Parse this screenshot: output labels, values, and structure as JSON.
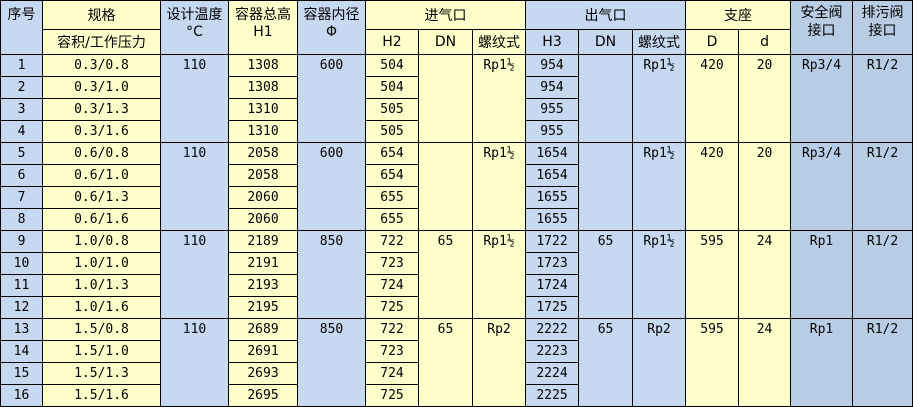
{
  "headers": {
    "no": "序号",
    "spec": "规格",
    "spec_sub": "容积/工作压力",
    "temp": "设计温度",
    "temp_unit": "°C",
    "height": "容器总高",
    "height_sub": "H1",
    "diameter": "容器内径",
    "diameter_sub": "Φ",
    "inlet": "进气口",
    "inlet_h": "H2",
    "inlet_dn": "DN",
    "inlet_thread": "螺纹式",
    "outlet": "出气口",
    "outlet_h": "H3",
    "outlet_dn": "DN",
    "outlet_thread": "螺纹式",
    "support": "支座",
    "support_D": "D",
    "support_d": "d",
    "safety": "安全阀接口",
    "drain": "排污阀接口"
  },
  "colors": {
    "yellow": "#FFFFCC",
    "blue": "#C6D9F1",
    "dark_blue": "#B8CCE4"
  },
  "groups": [
    {
      "temp": "110",
      "diameter": "600",
      "inlet_dn": "",
      "inlet_thread": "Rp1½",
      "outlet_dn": "",
      "outlet_thread": "Rp1½",
      "D": "420",
      "d": "20",
      "safety": "Rp3/4",
      "drain": "R1/2",
      "rows": [
        {
          "no": "1",
          "spec": "0.3/0.8",
          "h1": "1308",
          "h2": "504",
          "h3": "954"
        },
        {
          "no": "2",
          "spec": "0.3/1.0",
          "h1": "1308",
          "h2": "504",
          "h3": "954"
        },
        {
          "no": "3",
          "spec": "0.3/1.3",
          "h1": "1310",
          "h2": "505",
          "h3": "955"
        },
        {
          "no": "4",
          "spec": "0.3/1.6",
          "h1": "1310",
          "h2": "505",
          "h3": "955"
        }
      ]
    },
    {
      "temp": "110",
      "diameter": "600",
      "inlet_dn": "",
      "inlet_thread": "Rp1½",
      "outlet_dn": "",
      "outlet_thread": "Rp1½",
      "D": "420",
      "d": "20",
      "safety": "Rp3/4",
      "drain": "R1/2",
      "rows": [
        {
          "no": "5",
          "spec": "0.6/0.8",
          "h1": "2058",
          "h2": "654",
          "h3": "1654"
        },
        {
          "no": "6",
          "spec": "0.6/1.0",
          "h1": "2058",
          "h2": "654",
          "h3": "1654"
        },
        {
          "no": "7",
          "spec": "0.6/1.3",
          "h1": "2060",
          "h2": "655",
          "h3": "1655"
        },
        {
          "no": "8",
          "spec": "0.6/1.6",
          "h1": "2060",
          "h2": "655",
          "h3": "1655"
        }
      ]
    },
    {
      "temp": "110",
      "diameter": "850",
      "inlet_dn": "65",
      "inlet_thread": "Rp1½",
      "outlet_dn": "65",
      "outlet_thread": "Rp1½",
      "D": "595",
      "d": "24",
      "safety": "Rp1",
      "drain": "R1/2",
      "rows": [
        {
          "no": "9",
          "spec": "1.0/0.8",
          "h1": "2189",
          "h2": "722",
          "h3": "1722"
        },
        {
          "no": "10",
          "spec": "1.0/1.0",
          "h1": "2191",
          "h2": "723",
          "h3": "1723"
        },
        {
          "no": "11",
          "spec": "1.0/1.3",
          "h1": "2193",
          "h2": "724",
          "h3": "1724"
        },
        {
          "no": "12",
          "spec": "1.0/1.6",
          "h1": "2195",
          "h2": "725",
          "h3": "1725"
        }
      ]
    },
    {
      "temp": "110",
      "diameter": "850",
      "inlet_dn": "65",
      "inlet_thread": "Rp2",
      "outlet_dn": "65",
      "outlet_thread": "Rp2",
      "D": "595",
      "d": "24",
      "safety": "Rp1",
      "drain": "R1/2",
      "rows": [
        {
          "no": "13",
          "spec": "1.5/0.8",
          "h1": "2689",
          "h2": "722",
          "h3": "2222"
        },
        {
          "no": "14",
          "spec": "1.5/1.0",
          "h1": "2691",
          "h2": "723",
          "h3": "2223"
        },
        {
          "no": "15",
          "spec": "1.5/1.3",
          "h1": "2693",
          "h2": "724",
          "h3": "2224"
        },
        {
          "no": "16",
          "spec": "1.5/1.6",
          "h1": "2695",
          "h2": "725",
          "h3": "2225"
        }
      ]
    }
  ]
}
